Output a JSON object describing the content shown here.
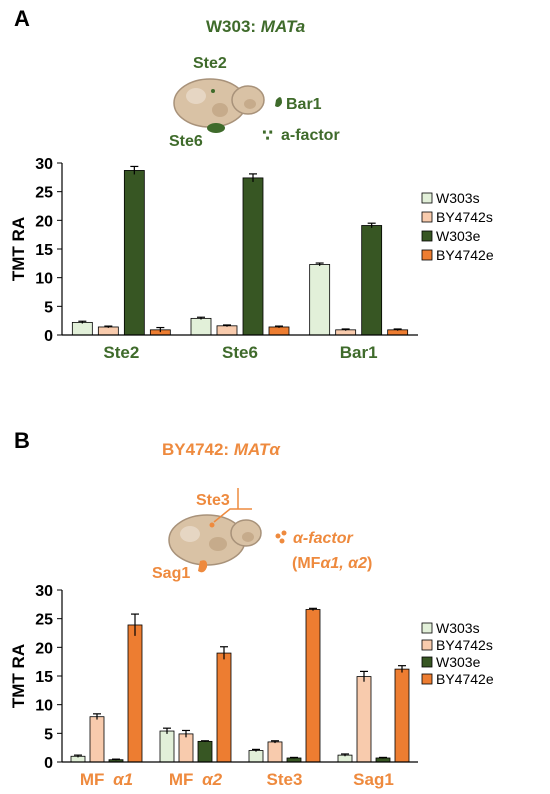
{
  "panels": [
    {
      "letter": "A",
      "strain_title": "W303: ",
      "strain_mating": "MATa",
      "diagram_labels": {
        "receptor": "Ste2",
        "transporter": "Ste6",
        "protease": "Bar1",
        "pheromone_dots": "∵",
        "pheromone": "a-factor"
      }
    },
    {
      "letter": "B",
      "strain_title": "BY4742: ",
      "strain_mating": "MATα",
      "diagram_labels": {
        "receptor": "Ste3",
        "agglutinin": "Sag1",
        "pheromone_prefix": "α-factor",
        "pheromone_open": "(MF",
        "pheromone_a1": "α1, α2",
        "pheromone_close": ")"
      }
    }
  ],
  "chart_data": [
    {
      "type": "bar",
      "ylabel": "TMT RA",
      "ylim": [
        0,
        30
      ],
      "yticks": [
        0,
        5,
        10,
        15,
        20,
        25,
        30
      ],
      "categories": [
        "Ste2",
        "Ste6",
        "Bar1"
      ],
      "category_prefix": [
        "",
        "",
        ""
      ],
      "category_suffix": [
        "",
        "",
        ""
      ],
      "legend_position": "right",
      "series": [
        {
          "name": "W303s",
          "color": "#e2f0d9",
          "values": [
            2.2,
            2.9,
            12.3
          ],
          "errors": [
            0.2,
            0.2,
            0.25
          ]
        },
        {
          "name": "BY4742s",
          "color": "#f8cbad",
          "values": [
            1.4,
            1.6,
            0.9
          ],
          "errors": [
            0.15,
            0.15,
            0.15
          ]
        },
        {
          "name": "W303e",
          "color": "#375623",
          "values": [
            28.7,
            27.4,
            19.1
          ],
          "errors": [
            0.7,
            0.7,
            0.4
          ]
        },
        {
          "name": "BY4742e",
          "color": "#ed7d31",
          "values": [
            0.9,
            1.4,
            0.9
          ],
          "errors": [
            0.4,
            0.15,
            0.15
          ]
        }
      ]
    },
    {
      "type": "bar",
      "ylabel": "TMT RA",
      "ylim": [
        0,
        30
      ],
      "yticks": [
        0,
        5,
        10,
        15,
        20,
        25,
        30
      ],
      "categories": [
        "MF ",
        "MF ",
        "Ste3",
        "Sag1"
      ],
      "category_suffix": [
        "α1",
        "α2",
        "",
        ""
      ],
      "legend_position": "right",
      "series": [
        {
          "name": "W303s",
          "color": "#e2f0d9",
          "values": [
            1.0,
            5.4,
            2.0,
            1.2
          ],
          "errors": [
            0.2,
            0.5,
            0.2,
            0.2
          ]
        },
        {
          "name": "BY4742s",
          "color": "#f8cbad",
          "values": [
            7.9,
            4.9,
            3.5,
            14.9
          ],
          "errors": [
            0.5,
            0.6,
            0.2,
            0.9
          ]
        },
        {
          "name": "W303e",
          "color": "#375623",
          "values": [
            0.4,
            3.6,
            0.7,
            0.7
          ],
          "errors": [
            0.1,
            0.1,
            0.1,
            0.1
          ]
        },
        {
          "name": "BY4742e",
          "color": "#ed7d31",
          "values": [
            23.9,
            19.0,
            26.6,
            16.2
          ],
          "errors": [
            1.9,
            1.1,
            0.2,
            0.6
          ]
        }
      ]
    }
  ]
}
